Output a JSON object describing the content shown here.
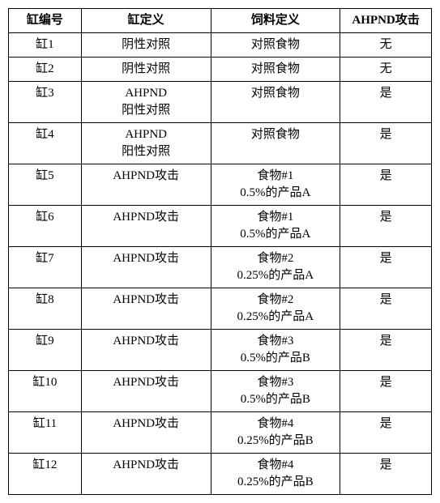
{
  "table": {
    "columns": [
      "缸编号",
      "缸定义",
      "饲料定义",
      "AHPND攻击"
    ],
    "col_widths": [
      "90px",
      "160px",
      "160px",
      "113px"
    ],
    "header_bg": "#ffffff",
    "border_color": "#000000",
    "font_size": 15,
    "rows": [
      {
        "id": "缸1",
        "def": "阴性对照",
        "feed": "对照食物",
        "attack": "无"
      },
      {
        "id": "缸2",
        "def": "阴性对照",
        "feed": "对照食物",
        "attack": "无"
      },
      {
        "id": "缸3",
        "def": "AHPND\n阳性对照",
        "feed": "对照食物",
        "attack": "是"
      },
      {
        "id": "缸4",
        "def": "AHPND\n阳性对照",
        "feed": "对照食物",
        "attack": "是"
      },
      {
        "id": "缸5",
        "def": "AHPND攻击",
        "feed": "食物#1\n0.5%的产品A",
        "attack": "是"
      },
      {
        "id": "缸6",
        "def": "AHPND攻击",
        "feed": "食物#1\n0.5%的产品A",
        "attack": "是"
      },
      {
        "id": "缸7",
        "def": "AHPND攻击",
        "feed": "食物#2\n0.25%的产品A",
        "attack": "是"
      },
      {
        "id": "缸8",
        "def": "AHPND攻击",
        "feed": "食物#2\n0.25%的产品A",
        "attack": "是"
      },
      {
        "id": "缸9",
        "def": "AHPND攻击",
        "feed": "食物#3\n0.5%的产品B",
        "attack": "是"
      },
      {
        "id": "缸10",
        "def": "AHPND攻击",
        "feed": "食物#3\n0.5%的产品B",
        "attack": "是"
      },
      {
        "id": "缸11",
        "def": "AHPND攻击",
        "feed": "食物#4\n0.25%的产品B",
        "attack": "是"
      },
      {
        "id": "缸12",
        "def": "AHPND攻击",
        "feed": "食物#4\n0.25%的产品B",
        "attack": "是"
      }
    ]
  }
}
